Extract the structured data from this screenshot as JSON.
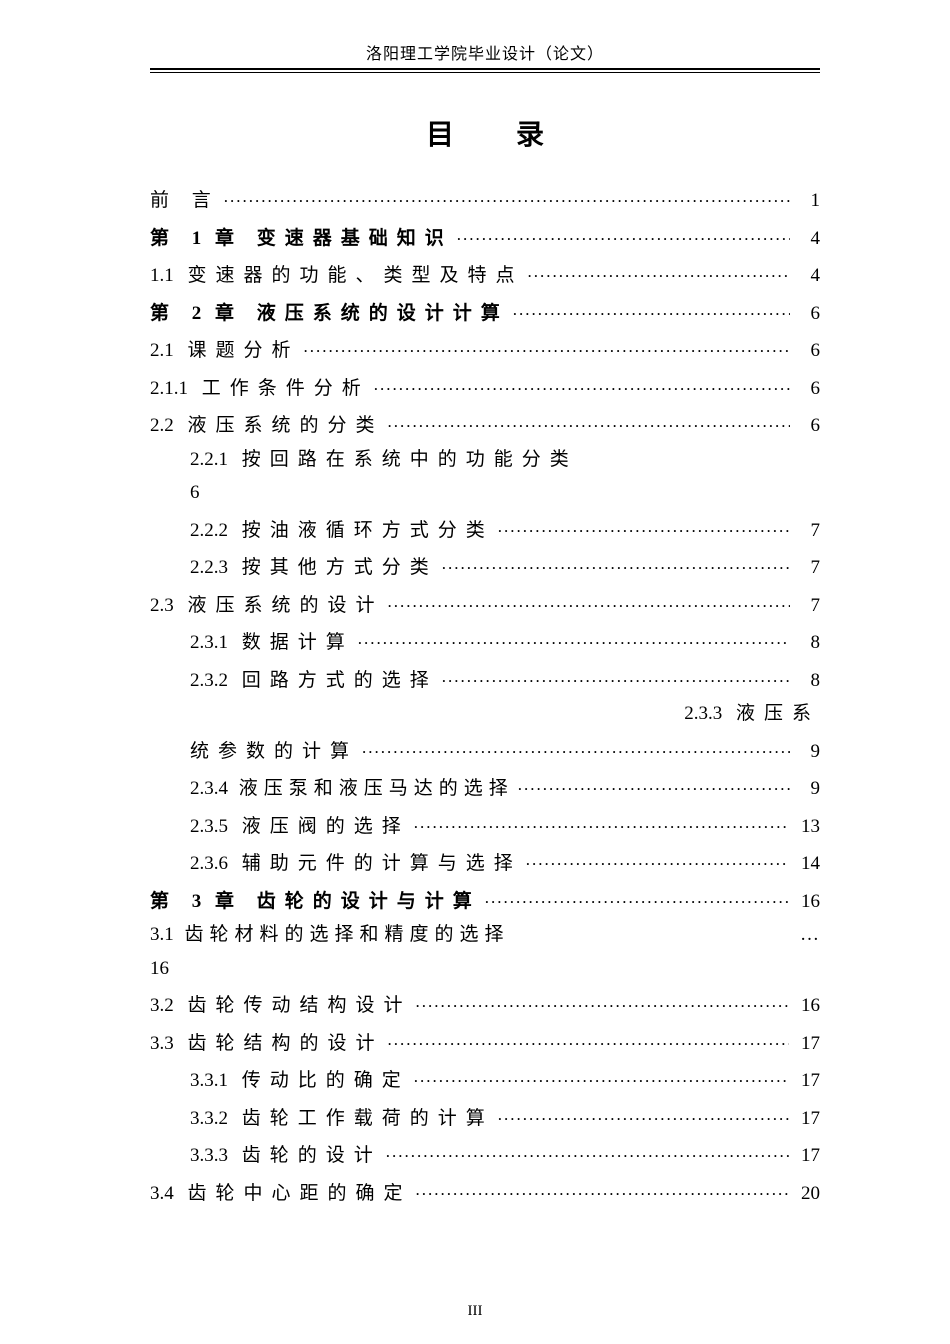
{
  "header": "洛阳理工学院毕业设计（论文）",
  "title": {
    "left": "目",
    "right": "录"
  },
  "footer": "III",
  "toc": {
    "r0": {
      "label": "前      言",
      "page": "1"
    },
    "r1": {
      "chapnum": "1",
      "chaptxt": "章   变速器基础知识",
      "page": "4"
    },
    "r2": {
      "num": "1.1",
      "label": "变速器的功能、类型及特点",
      "page": "4"
    },
    "r3": {
      "chapnum": "2",
      "chaptxt": "章   液压系统的设计计算",
      "page": "6"
    },
    "r4": {
      "num": "2.1",
      "label": "课题分析",
      "page": "6"
    },
    "r5": {
      "num": "2.1.1",
      "label": "工作条件分析",
      "page": "6"
    },
    "r6": {
      "num": "2.2",
      "label": "液压系统的分类",
      "page": "6"
    },
    "r7": {
      "num": "2.2.1",
      "label": "按回路在系统中的功能分类"
    },
    "r7b": {
      "label": "6"
    },
    "r8": {
      "num": "2.2.2",
      "label": "按油液循环方式分类",
      "page": "7"
    },
    "r9": {
      "num": "2.2.3",
      "label": "按其他方式分类",
      "page": "7"
    },
    "r10": {
      "num": "2.3",
      "label": "液压系统的设计",
      "page": "7"
    },
    "r11": {
      "num": "2.3.1",
      "label": "数据计算",
      "page": "8"
    },
    "r12": {
      "num": "2.3.2",
      "label": "回路方式的选择",
      "page": "8"
    },
    "r12b": {
      "num": "2.3.3",
      "label": "液压系"
    },
    "r13": {
      "label": "统参数的计算",
      "page": "9"
    },
    "r14": {
      "num": "2.3.4",
      "label": "液压泵和液压马达的选择",
      "page": "9"
    },
    "r15": {
      "num": "2.3.5",
      "label": "液压阀的选择",
      "page": "13"
    },
    "r16": {
      "num": "2.3.6",
      "label": "辅助元件的计算与选择",
      "page": "14"
    },
    "r17": {
      "chapnum": "3",
      "chaptxt": "章   齿轮的设计与计算",
      "page": "16"
    },
    "r18": {
      "num": "3.1",
      "label": "齿轮材料的选择和精度的选择",
      "page": ""
    },
    "r18b": {
      "label": "16"
    },
    "r19": {
      "num": "3.2",
      "label": "齿轮传动结构设计",
      "page": "16"
    },
    "r20": {
      "num": "3.3",
      "label": "齿轮结构的设计",
      "page": "17"
    },
    "r21": {
      "num": "3.3.1",
      "label": "传动比的确定",
      "page": "17"
    },
    "r22": {
      "num": "3.3.2",
      "label": "齿轮工作载荷的计算",
      "page": "17"
    },
    "r23": {
      "num": "3.3.3",
      "label": "齿轮的设计",
      "page": "17"
    },
    "r24": {
      "num": "3.4",
      "label": "齿轮中心距的确定",
      "page": "20"
    }
  }
}
